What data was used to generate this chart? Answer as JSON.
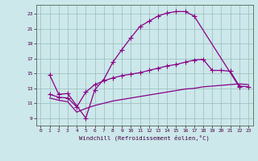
{
  "title": "",
  "xlabel": "Windchill (Refroidissement éolien,°C)",
  "bg_color": "#cce8ea",
  "line_color": "#880088",
  "grid_color": "#99bbbb",
  "xlim": [
    -0.5,
    23.5
  ],
  "ylim": [
    8.0,
    24.2
  ],
  "xticks": [
    0,
    1,
    2,
    3,
    4,
    5,
    6,
    7,
    8,
    9,
    10,
    11,
    12,
    13,
    14,
    15,
    16,
    17,
    18,
    19,
    20,
    21,
    22,
    23
  ],
  "yticks": [
    9,
    11,
    13,
    15,
    17,
    19,
    21,
    23
  ],
  "curve1_x": [
    1,
    2,
    3,
    5,
    6,
    7,
    8,
    9,
    10,
    11,
    12,
    13,
    14,
    15,
    16,
    17,
    22
  ],
  "curve1_y": [
    14.8,
    12.2,
    12.3,
    9.0,
    12.8,
    14.2,
    16.5,
    18.2,
    19.8,
    21.3,
    22.0,
    22.7,
    23.1,
    23.3,
    23.3,
    22.7,
    13.2
  ],
  "curve2_x": [
    1,
    2,
    3,
    4,
    5,
    6,
    7,
    8,
    9,
    10,
    11,
    12,
    13,
    14,
    15,
    16,
    17,
    18,
    19,
    20,
    21,
    22,
    23
  ],
  "curve2_y": [
    12.2,
    11.8,
    11.7,
    10.5,
    12.5,
    13.5,
    14.0,
    14.4,
    14.7,
    14.9,
    15.1,
    15.4,
    15.7,
    16.0,
    16.2,
    16.5,
    16.8,
    16.9,
    15.4,
    15.4,
    15.3,
    13.3,
    13.2
  ],
  "curve3_x": [
    1,
    2,
    3,
    4,
    5,
    6,
    7,
    8,
    9,
    10,
    11,
    12,
    13,
    14,
    15,
    16,
    17,
    18,
    19,
    20,
    21,
    22,
    23
  ],
  "curve3_y": [
    11.7,
    11.4,
    11.2,
    9.8,
    10.3,
    10.7,
    11.0,
    11.3,
    11.5,
    11.7,
    11.9,
    12.1,
    12.3,
    12.5,
    12.7,
    12.9,
    13.0,
    13.2,
    13.3,
    13.4,
    13.5,
    13.6,
    13.5
  ]
}
